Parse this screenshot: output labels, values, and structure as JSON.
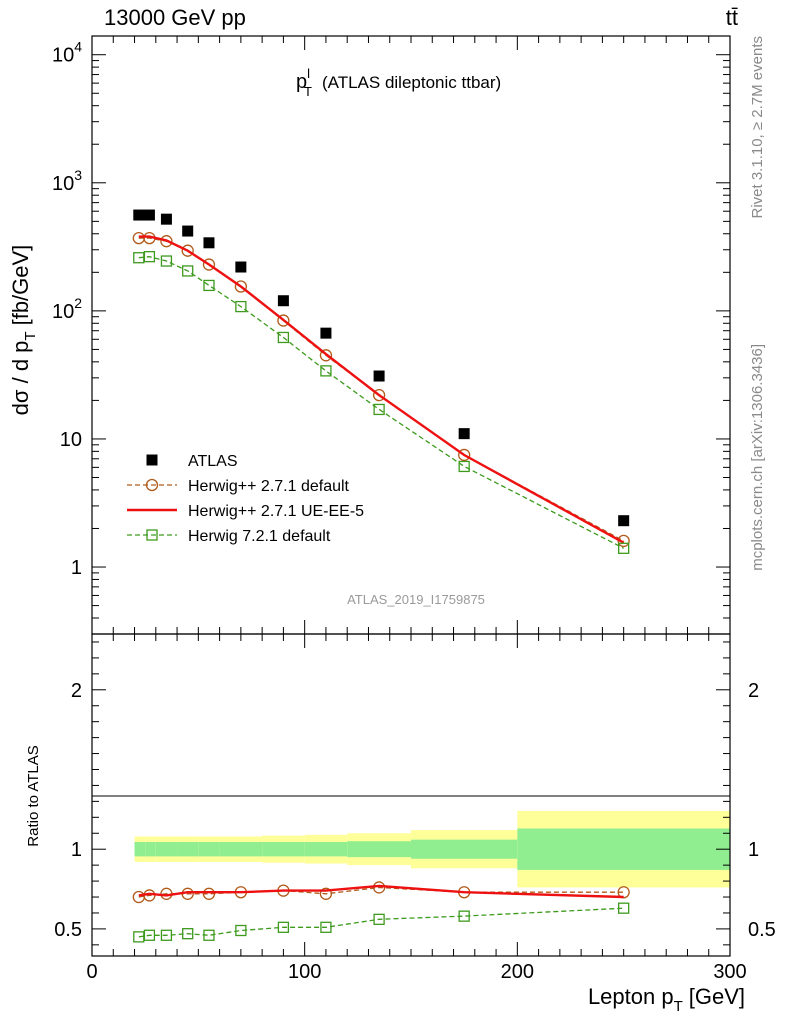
{
  "header": {
    "energy_label": "13000 GeV pp",
    "process_label": "tt̄"
  },
  "side_labels": {
    "rivet": "Rivet 3.1.10, ≥ 2.7M events",
    "mcplots": "mcplots.cern.ch [arXiv:1306.3436]"
  },
  "analysis_id": "ATLAS_2019_I1759875",
  "chart_data": [
    {
      "type": "line",
      "panel": "main",
      "title_main": "p",
      "title_sup": "l",
      "title_sub": "T",
      "title_rest": "(ATLAS dileptonic ttbar)",
      "ylabel": "dσ / d p",
      "ylabel_sub": "T",
      "ylabel_unit": "[fb/GeV]",
      "y_scale": "log",
      "xlim": [
        0,
        300
      ],
      "ylim": [
        0.3,
        14000
      ],
      "y_ticks": [
        {
          "value": 1,
          "label": "1"
        },
        {
          "value": 10,
          "label": "10"
        },
        {
          "value": 100,
          "label": "10",
          "exp": "2"
        },
        {
          "value": 1000,
          "label": "10",
          "exp": "3"
        },
        {
          "value": 10000,
          "label": "10",
          "exp": "4"
        }
      ],
      "legend_position": "bottom-left",
      "series": [
        {
          "name": "ATLAS",
          "style": "marker-square-filled",
          "color": "#000000",
          "x": [
            22,
            27,
            35,
            45,
            55,
            70,
            90,
            110,
            135,
            175,
            250
          ],
          "y": [
            560,
            560,
            520,
            420,
            340,
            220,
            120,
            67,
            31,
            11,
            2.3
          ]
        },
        {
          "name": "Herwig++ 2.7.1 default",
          "style": "dashed-circle",
          "color": "#b05a1a",
          "x": [
            22,
            27,
            35,
            45,
            55,
            70,
            90,
            110,
            135,
            175,
            250
          ],
          "y": [
            370,
            370,
            350,
            295,
            230,
            155,
            84,
            45,
            22,
            7.5,
            1.6
          ]
        },
        {
          "name": "Herwig++ 2.7.1 UE-EE-5",
          "style": "solid",
          "color": "#ee1111",
          "x": [
            22,
            27,
            35,
            45,
            55,
            70,
            90,
            110,
            135,
            175,
            250
          ],
          "y": [
            380,
            380,
            355,
            295,
            230,
            155,
            85,
            46,
            22,
            7.5,
            1.55
          ]
        },
        {
          "name": "Herwig 7.2.1 default",
          "style": "dashed-square-open",
          "color": "#3d9a1d",
          "x": [
            22,
            27,
            35,
            45,
            55,
            70,
            90,
            110,
            135,
            175,
            250
          ],
          "y": [
            260,
            265,
            245,
            205,
            158,
            108,
            62,
            34,
            17,
            6.1,
            1.4
          ]
        }
      ]
    },
    {
      "type": "line",
      "panel": "ratio",
      "ylabel": "Ratio to ATLAS",
      "y_scale": "linear",
      "xlim": [
        0,
        300
      ],
      "ylim": [
        0.33,
        2.35
      ],
      "y_ticks": [
        {
          "value": 0.5,
          "label": "0.5"
        },
        {
          "value": 1,
          "label": "1"
        },
        {
          "value": 2,
          "label": "2"
        }
      ],
      "x_ticks": [
        {
          "value": 0,
          "label": "0"
        },
        {
          "value": 100,
          "label": "100"
        },
        {
          "value": 200,
          "label": "200"
        },
        {
          "value": 300,
          "label": "300"
        }
      ],
      "xlabel": "Lepton p",
      "xlabel_sub": "T",
      "xlabel_unit": "[GeV]",
      "bands": {
        "edges": [
          20,
          25,
          30,
          40,
          50,
          60,
          80,
          100,
          120,
          150,
          200,
          300
        ],
        "green": [
          0.045,
          0.045,
          0.045,
          0.045,
          0.045,
          0.045,
          0.045,
          0.045,
          0.05,
          0.06,
          0.13
        ],
        "yellow": [
          0.08,
          0.08,
          0.08,
          0.08,
          0.08,
          0.08,
          0.085,
          0.09,
          0.1,
          0.12,
          0.24
        ],
        "green_color": "#90ee90",
        "yellow_color": "#ffff99"
      },
      "series": [
        {
          "name": "Herwig++ 2.7.1 default",
          "style": "dashed-circle",
          "color": "#b05a1a",
          "x": [
            22,
            27,
            35,
            45,
            55,
            70,
            90,
            110,
            135,
            175,
            250
          ],
          "y": [
            0.7,
            0.71,
            0.72,
            0.72,
            0.72,
            0.73,
            0.74,
            0.72,
            0.76,
            0.73,
            0.73
          ]
        },
        {
          "name": "Herwig++ 2.7.1 UE-EE-5",
          "style": "solid",
          "color": "#ee1111",
          "x": [
            22,
            27,
            35,
            45,
            55,
            70,
            90,
            110,
            135,
            175,
            250
          ],
          "y": [
            0.71,
            0.72,
            0.71,
            0.73,
            0.73,
            0.73,
            0.74,
            0.74,
            0.77,
            0.73,
            0.7
          ]
        },
        {
          "name": "Herwig 7.2.1 default",
          "style": "dashed-square-open",
          "color": "#3d9a1d",
          "x": [
            22,
            27,
            35,
            45,
            55,
            70,
            90,
            110,
            135,
            175,
            250
          ],
          "y": [
            0.45,
            0.46,
            0.46,
            0.47,
            0.46,
            0.49,
            0.51,
            0.51,
            0.56,
            0.58,
            0.63
          ]
        }
      ]
    }
  ]
}
